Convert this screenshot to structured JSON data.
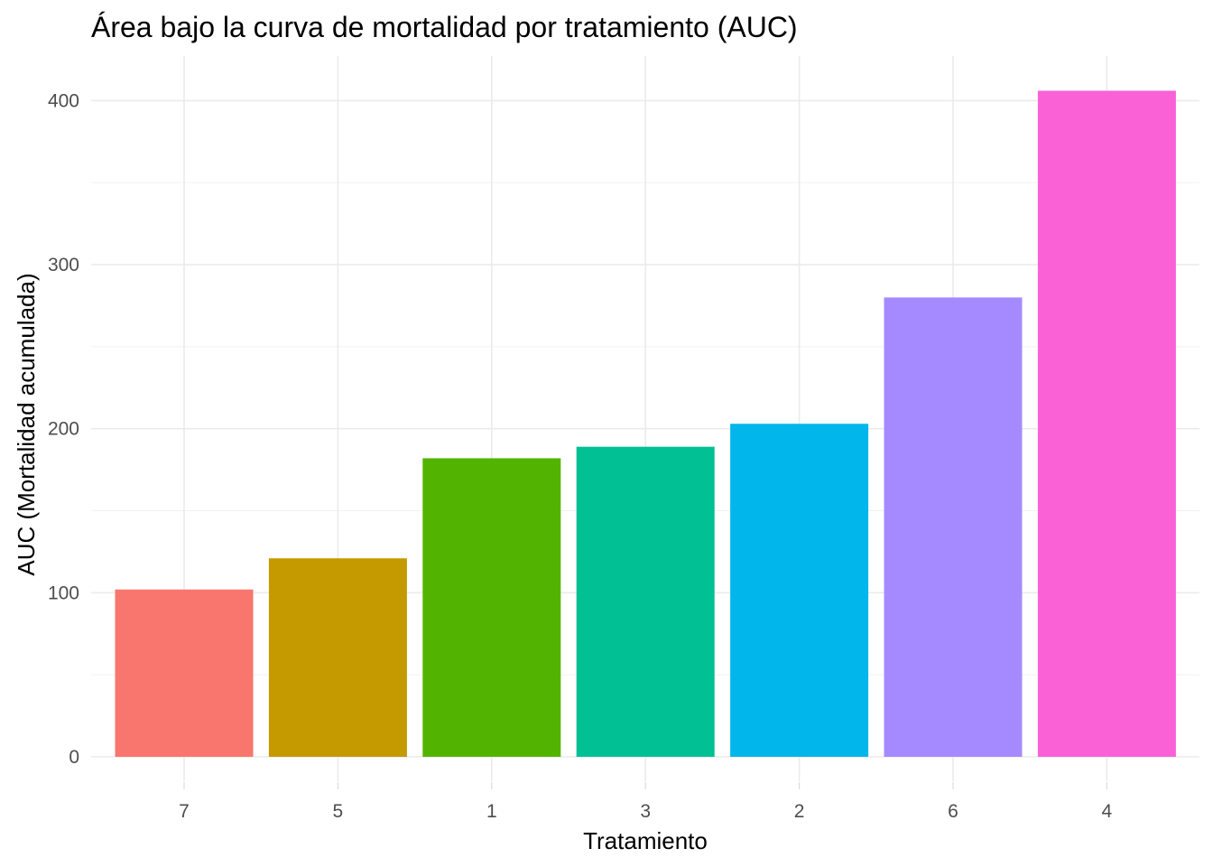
{
  "chart_data": {
    "type": "bar",
    "title": "Área bajo la curva de mortalidad por tratamiento (AUC)",
    "xlabel": "Tratamiento",
    "ylabel": "AUC (Mortalidad acumulada)",
    "categories": [
      "7",
      "5",
      "1",
      "3",
      "2",
      "6",
      "4"
    ],
    "values": [
      102,
      121,
      182,
      189,
      203,
      280,
      406
    ],
    "colors": [
      "#F8766D",
      "#C49A00",
      "#53B400",
      "#00C094",
      "#00B6EB",
      "#A58AFF",
      "#FB61D7"
    ],
    "ylim": [
      0,
      420
    ],
    "yticks": [
      0,
      100,
      200,
      300,
      400
    ],
    "grid": true,
    "legend": "none"
  }
}
